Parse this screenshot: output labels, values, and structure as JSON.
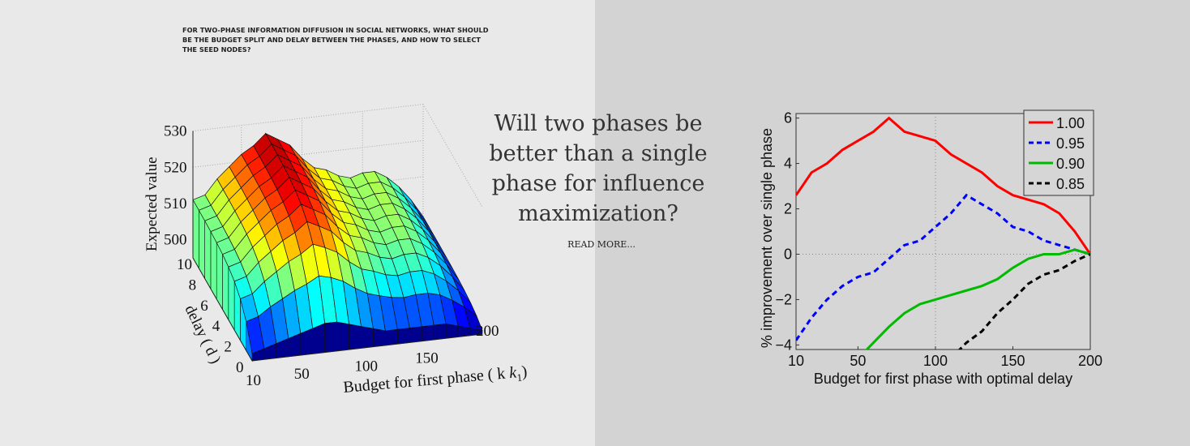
{
  "headline": "For two-phase information diffusion in social networks, what should be the budget split and delay between the phases, and how to select the seed nodes?",
  "question": "Will two phases be better than a single phase for influence maximization?",
  "read_more": "READ MORE...",
  "chart_data": [
    {
      "type": "surface",
      "zlabel": "Expected value",
      "xlabel": "Budget for first phase ( k",
      "xlabel_sub": "1",
      "xlabel_close": ")",
      "ylabel": "delay ( d )",
      "x_ticks": [
        "10",
        "50",
        "100",
        "150",
        "200"
      ],
      "y_ticks": [
        "0",
        "2",
        "4",
        "6",
        "8",
        "10"
      ],
      "z_ticks": [
        "500",
        "510",
        "520",
        "530"
      ],
      "x": [
        10,
        20,
        30,
        40,
        50,
        60,
        70,
        80,
        90,
        100,
        110,
        120,
        130,
        140,
        150,
        160,
        170,
        180,
        190,
        200
      ],
      "z_profile_high_delay": [
        511,
        512,
        516,
        519,
        522,
        524,
        527,
        525,
        523,
        519,
        516,
        515,
        513,
        512,
        513,
        513,
        511,
        508,
        504,
        499
      ],
      "z_profile_zero_delay": [
        497,
        498,
        499,
        500,
        501,
        502,
        503,
        503,
        502,
        501,
        500,
        499,
        499,
        499,
        499,
        499,
        499,
        498,
        497,
        496
      ],
      "xlim": [
        10,
        200
      ],
      "ylim": [
        0,
        10
      ],
      "zlim": [
        495,
        530
      ]
    },
    {
      "type": "line",
      "xlabel": "Budget for first phase with optimal delay",
      "ylabel": "% improvement over single phase",
      "x_ticks": [
        10,
        50,
        100,
        150,
        200
      ],
      "y_ticks": [
        -4,
        -2,
        0,
        2,
        4,
        6
      ],
      "xlim": [
        10,
        200
      ],
      "ylim": [
        -4.2,
        6.2
      ],
      "legend_position": "top-right",
      "x": [
        10,
        20,
        30,
        40,
        50,
        60,
        70,
        80,
        90,
        100,
        110,
        120,
        130,
        140,
        150,
        160,
        170,
        180,
        190,
        200
      ],
      "series": [
        {
          "name": "1.00",
          "color": "#ff0000",
          "dash": "solid",
          "values": [
            2.6,
            3.6,
            4.0,
            4.6,
            5.0,
            5.4,
            6.0,
            5.4,
            5.2,
            5.0,
            4.4,
            4.0,
            3.6,
            3.0,
            2.6,
            2.4,
            2.2,
            1.8,
            1.0,
            0
          ]
        },
        {
          "name": "0.95",
          "color": "#0000ff",
          "dash": "dashed",
          "values": [
            -3.8,
            -2.8,
            -2.0,
            -1.4,
            -1.0,
            -0.8,
            -0.2,
            0.4,
            0.6,
            1.2,
            1.8,
            2.6,
            2.2,
            1.8,
            1.2,
            1.0,
            0.6,
            0.4,
            0.2,
            0
          ]
        },
        {
          "name": "0.90",
          "color": "#00bb00",
          "dash": "solid",
          "values": [
            null,
            null,
            null,
            null,
            -4.6,
            -3.9,
            -3.2,
            -2.6,
            -2.2,
            -2.0,
            -1.8,
            -1.6,
            -1.4,
            -1.1,
            -0.6,
            -0.2,
            0,
            0,
            0.2,
            0
          ]
        },
        {
          "name": "0.85",
          "color": "#000000",
          "dash": "dashed",
          "values": [
            null,
            null,
            null,
            null,
            null,
            null,
            null,
            null,
            null,
            null,
            -4.6,
            -3.9,
            -3.4,
            -2.6,
            -2.0,
            -1.3,
            -0.9,
            -0.7,
            -0.3,
            0
          ]
        }
      ]
    }
  ]
}
